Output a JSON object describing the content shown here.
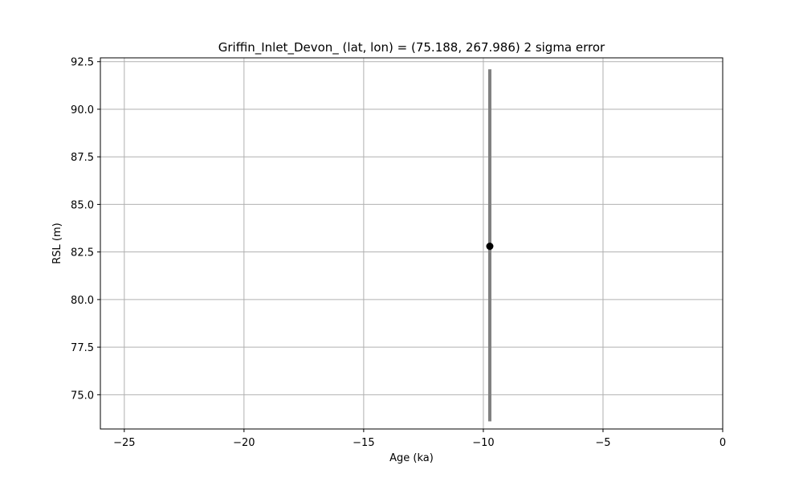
{
  "chart_data": {
    "type": "scatter",
    "title": "Griffin_Inlet_Devon_ (lat, lon) = (75.188, 267.986)  2 sigma error",
    "xlabel": "Age (ka)",
    "ylabel": "RSL (m)",
    "xlim": [
      -26,
      0
    ],
    "ylim": [
      73.2,
      92.7
    ],
    "xticks": [
      -25,
      -20,
      -15,
      -10,
      -5,
      0
    ],
    "xtick_labels": [
      "−25",
      "−20",
      "−15",
      "−10",
      "−5",
      "0"
    ],
    "yticks": [
      75.0,
      77.5,
      80.0,
      82.5,
      85.0,
      87.5,
      90.0,
      92.5
    ],
    "ytick_labels": [
      "75.0",
      "77.5",
      "80.0",
      "82.5",
      "85.0",
      "87.5",
      "90.0",
      "92.5"
    ],
    "grid": true,
    "points": [
      {
        "x": -9.73,
        "y": 82.8,
        "y_lower": 73.6,
        "y_upper": 92.1
      }
    ],
    "colors": {
      "marker": "#000000",
      "errorbar": "#808080",
      "grid": "#b0b0b0",
      "axes": "#000000"
    }
  }
}
